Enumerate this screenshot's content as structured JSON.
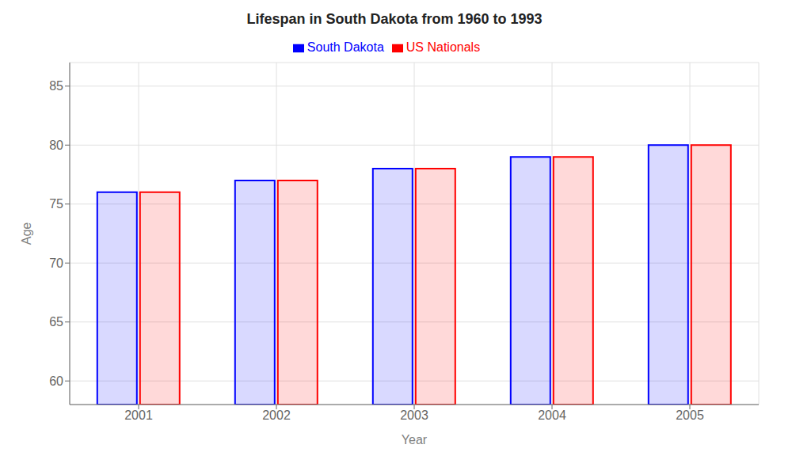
{
  "chart_data": {
    "type": "bar",
    "title": "Lifespan in South Dakota from 1960 to 1993",
    "x_label": "Year",
    "y_label": "Age",
    "categories": [
      "2001",
      "2002",
      "2003",
      "2004",
      "2005"
    ],
    "series": [
      {
        "name": "South Dakota",
        "color": "#0000ff",
        "values": [
          76,
          77,
          78,
          79,
          80
        ]
      },
      {
        "name": "US Nationals",
        "color": "#ff0000",
        "values": [
          76,
          77,
          78,
          79,
          80
        ]
      }
    ],
    "ylim": [
      58,
      87
    ],
    "yticks": [
      60,
      65,
      70,
      75,
      80,
      85
    ],
    "grid": true,
    "legend": "top"
  }
}
